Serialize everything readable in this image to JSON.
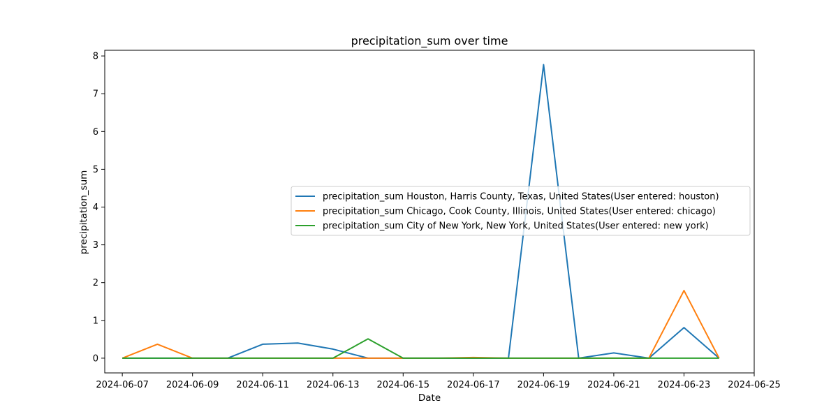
{
  "chart_data": {
    "type": "line",
    "title": "precipitation_sum over time",
    "xlabel": "Date",
    "ylabel": "precipitation_sum",
    "xlim": [
      "2024-06-06T12:00",
      "2024-06-25T00:00"
    ],
    "ylim": [
      -0.39,
      8.15
    ],
    "x_ticks": [
      "2024-06-07",
      "2024-06-09",
      "2024-06-11",
      "2024-06-13",
      "2024-06-15",
      "2024-06-17",
      "2024-06-19",
      "2024-06-21",
      "2024-06-23",
      "2024-06-25"
    ],
    "y_ticks": [
      0,
      1,
      2,
      3,
      4,
      5,
      6,
      7,
      8
    ],
    "grid": false,
    "legend_position": "center-right",
    "x": [
      "2024-06-07",
      "2024-06-08",
      "2024-06-09",
      "2024-06-10",
      "2024-06-11",
      "2024-06-12",
      "2024-06-13",
      "2024-06-14",
      "2024-06-15",
      "2024-06-16",
      "2024-06-17",
      "2024-06-18",
      "2024-06-19",
      "2024-06-20",
      "2024-06-21",
      "2024-06-22",
      "2024-06-23",
      "2024-06-24"
    ],
    "series": [
      {
        "name": "precipitation_sum Houston, Harris County, Texas, United States(User entered: houston)",
        "color": "#1f77b4",
        "values": [
          0,
          0,
          0,
          0,
          0.37,
          0.4,
          0.24,
          0,
          0,
          0,
          0,
          0,
          7.77,
          0,
          0.14,
          0,
          0.81,
          0
        ]
      },
      {
        "name": "precipitation_sum Chicago, Cook County, Illinois, United States(User entered: chicago)",
        "color": "#ff7f0e",
        "values": [
          0,
          0.37,
          0,
          0,
          0,
          0,
          0,
          0,
          0,
          0,
          0.02,
          0,
          0,
          0,
          0,
          0,
          1.79,
          0
        ]
      },
      {
        "name": "precipitation_sum City of New York, New York, United States(User entered: new york)",
        "color": "#2ca02c",
        "values": [
          0,
          0,
          0,
          0,
          0,
          0,
          0,
          0.51,
          0,
          0,
          0,
          0,
          0,
          0,
          0,
          0,
          0,
          0
        ]
      }
    ]
  }
}
